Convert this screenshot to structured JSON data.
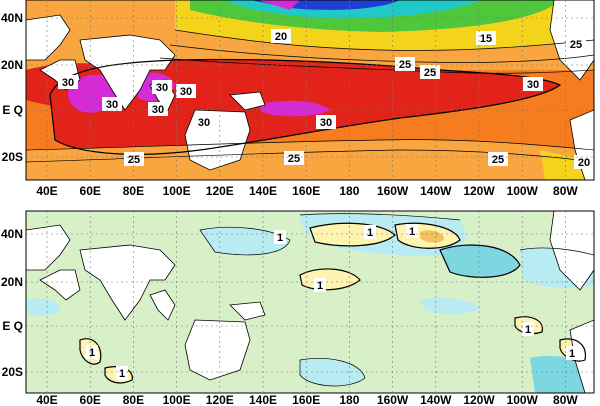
{
  "maps": [
    {
      "lat_labels": [
        "40N",
        "20N",
        "E Q",
        "20S"
      ],
      "lon_labels": [
        "40E",
        "60E",
        "80E",
        "100E",
        "120E",
        "140E",
        "160E",
        "180",
        "160W",
        "140W",
        "120W",
        "100W",
        "80W"
      ],
      "contour_labels": [
        "20",
        "15",
        "25",
        "25",
        "25",
        "30",
        "30",
        "30",
        "30",
        "30",
        "30",
        "30",
        "25",
        "25",
        "25",
        "20"
      ]
    },
    {
      "lat_labels": [
        "40N",
        "20N",
        "E Q",
        "20S"
      ],
      "lon_labels": [
        "40E",
        "60E",
        "80E",
        "100E",
        "120E",
        "140E",
        "160E",
        "180",
        "160W",
        "140W",
        "120W",
        "100W",
        "80W"
      ],
      "contour_labels": [
        "1",
        "1",
        "1",
        "1",
        "1",
        "1",
        "1",
        "1"
      ]
    }
  ],
  "colors": {
    "warm_pool": "#e2231a",
    "orange": "#f57c1f",
    "light_orange": "#f9a640",
    "yellow": "#f4d31b",
    "green": "#4fc73a",
    "cyan": "#1fc9c7",
    "blue": "#1e3fd6",
    "magenta": "#d62ad6",
    "anom_pale_green": "#d8f0c8",
    "anom_yellow": "#fff3b0",
    "anom_orange": "#f5c060",
    "anom_cyan": "#b8ecf2",
    "anom_teal": "#7ed6e0"
  }
}
